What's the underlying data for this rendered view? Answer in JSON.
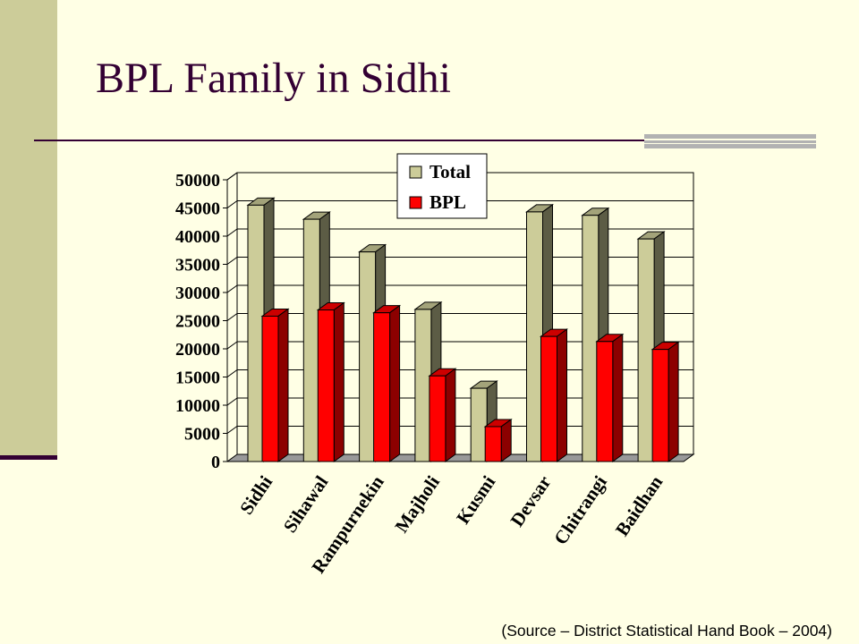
{
  "slide": {
    "title": "BPL Family in Sidhi",
    "source": "(Source – District Statistical Hand Book – 2004)"
  },
  "colors": {
    "background": "#ffffe5",
    "accent_bar": "#cccc99",
    "title_text": "#330033",
    "total_series": "#cccc99",
    "bpl_series": "#ff0000"
  },
  "chart_data": {
    "type": "bar",
    "title": "",
    "xlabel": "",
    "ylabel": "",
    "ylim": [
      0,
      50000
    ],
    "yticks": [
      0,
      5000,
      10000,
      15000,
      20000,
      25000,
      30000,
      35000,
      40000,
      45000,
      50000
    ],
    "grid": true,
    "legend": "top",
    "categories": [
      "Sidhi",
      "Sihawal",
      "Rampurnekin",
      "Majholi",
      "Kusmi",
      "Devsar",
      "Chitrangi",
      "Baidhan"
    ],
    "series": [
      {
        "name": "Total",
        "color": "#cccc99",
        "values": [
          45500,
          43000,
          37200,
          27000,
          13000,
          44300,
          43700,
          39500
        ]
      },
      {
        "name": "BPL",
        "color": "#ff0000",
        "values": [
          25800,
          26900,
          26400,
          15200,
          6200,
          22200,
          21300,
          19900
        ]
      }
    ]
  }
}
